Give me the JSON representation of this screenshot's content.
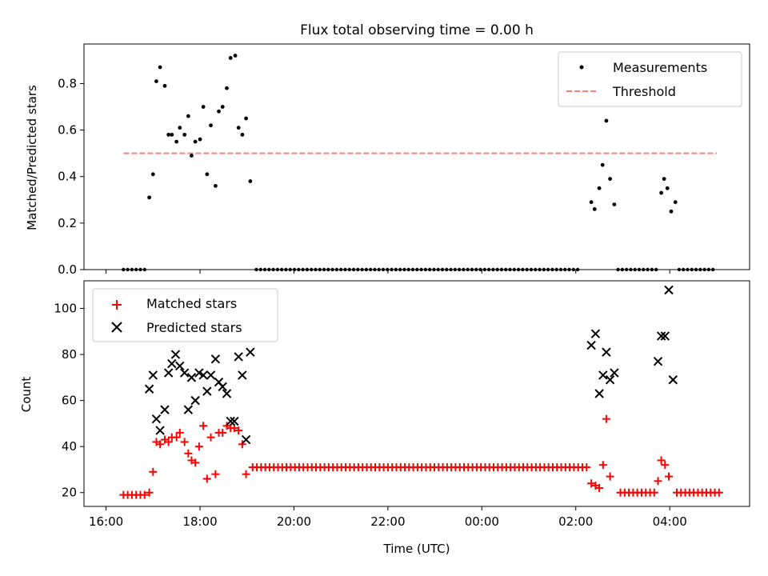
{
  "title": "Flux total observing time = 0.00 h",
  "xlabel": "Time (UTC)",
  "x_tick_labels": [
    "16:00",
    "18:00",
    "20:00",
    "22:00",
    "00:00",
    "02:00",
    "04:00"
  ],
  "x_tick_hours": [
    16,
    18,
    20,
    22,
    24,
    26,
    28
  ],
  "xlim_hours": [
    15.53,
    29.7
  ],
  "chart_data": [
    {
      "type": "scatter",
      "ylabel": "Matched/Predicted stars",
      "ylim": [
        0,
        0.97
      ],
      "y_ticks": [
        0.0,
        0.2,
        0.4,
        0.6,
        0.8
      ],
      "y_tick_labels": [
        "0.0",
        "0.2",
        "0.4",
        "0.6",
        "0.8"
      ],
      "legend_position": "upper right",
      "threshold": {
        "name": "Threshold",
        "y": 0.5,
        "x_range": [
          16.37,
          29.0
        ],
        "color": "#ff7f7f"
      },
      "series": [
        {
          "name": "Measurements",
          "color": "#000000",
          "x_ranges_zero": [
            [
              16.37,
              16.85
            ],
            [
              19.2,
              26.1
            ],
            [
              26.9,
              27.75
            ],
            [
              28.2,
              29.0
            ]
          ],
          "points": [
            [
              16.92,
              0.31
            ],
            [
              17.0,
              0.41
            ],
            [
              17.07,
              0.81
            ],
            [
              17.15,
              0.87
            ],
            [
              17.25,
              0.79
            ],
            [
              17.33,
              0.58
            ],
            [
              17.4,
              0.58
            ],
            [
              17.5,
              0.55
            ],
            [
              17.57,
              0.61
            ],
            [
              17.67,
              0.58
            ],
            [
              17.75,
              0.66
            ],
            [
              17.82,
              0.49
            ],
            [
              17.9,
              0.55
            ],
            [
              18.0,
              0.56
            ],
            [
              18.07,
              0.7
            ],
            [
              18.15,
              0.41
            ],
            [
              18.23,
              0.62
            ],
            [
              18.33,
              0.36
            ],
            [
              18.4,
              0.68
            ],
            [
              18.48,
              0.7
            ],
            [
              18.57,
              0.78
            ],
            [
              18.65,
              0.91
            ],
            [
              18.75,
              0.92
            ],
            [
              18.82,
              0.61
            ],
            [
              18.9,
              0.58
            ],
            [
              18.98,
              0.65
            ],
            [
              19.07,
              0.38
            ],
            [
              26.33,
              0.29
            ],
            [
              26.4,
              0.26
            ],
            [
              26.5,
              0.35
            ],
            [
              26.57,
              0.45
            ],
            [
              26.65,
              0.64
            ],
            [
              26.73,
              0.39
            ],
            [
              26.82,
              0.28
            ],
            [
              27.82,
              0.33
            ],
            [
              27.88,
              0.39
            ],
            [
              27.95,
              0.35
            ],
            [
              28.03,
              0.25
            ],
            [
              28.12,
              0.29
            ]
          ]
        }
      ]
    },
    {
      "type": "scatter",
      "ylabel": "Count",
      "ylim": [
        14,
        112
      ],
      "y_ticks": [
        20,
        40,
        60,
        80,
        100
      ],
      "y_tick_labels": [
        "20",
        "40",
        "60",
        "80",
        "100"
      ],
      "legend_position": "upper left",
      "series": [
        {
          "name": "Matched stars",
          "color": "#ff0000",
          "marker": "plus",
          "baselines": [
            {
              "x_range": [
                16.37,
                16.85
              ],
              "y": 19
            },
            {
              "x_range": [
                19.12,
                26.25
              ],
              "y": 31
            },
            {
              "x_range": [
                26.95,
                27.7
              ],
              "y": 20
            },
            {
              "x_range": [
                28.15,
                29.05
              ],
              "y": 20
            }
          ],
          "points": [
            [
              16.92,
              20
            ],
            [
              17.0,
              29
            ],
            [
              17.07,
              42
            ],
            [
              17.15,
              41
            ],
            [
              17.25,
              43
            ],
            [
              17.33,
              42
            ],
            [
              17.4,
              44
            ],
            [
              17.5,
              44
            ],
            [
              17.57,
              46
            ],
            [
              17.67,
              42
            ],
            [
              17.75,
              37
            ],
            [
              17.82,
              34
            ],
            [
              17.9,
              33
            ],
            [
              17.98,
              40
            ],
            [
              18.07,
              49
            ],
            [
              18.15,
              26
            ],
            [
              18.23,
              44
            ],
            [
              18.33,
              28
            ],
            [
              18.4,
              46
            ],
            [
              18.48,
              46
            ],
            [
              18.57,
              49
            ],
            [
              18.65,
              48
            ],
            [
              18.73,
              48
            ],
            [
              18.82,
              47
            ],
            [
              18.9,
              41
            ],
            [
              18.98,
              28
            ],
            [
              26.33,
              24
            ],
            [
              26.42,
              23
            ],
            [
              26.5,
              22
            ],
            [
              26.58,
              32
            ],
            [
              26.65,
              52
            ],
            [
              26.73,
              27
            ],
            [
              27.75,
              25
            ],
            [
              27.82,
              34
            ],
            [
              27.9,
              32
            ],
            [
              27.98,
              27
            ]
          ]
        },
        {
          "name": "Predicted stars",
          "color": "#000000",
          "marker": "x",
          "points": [
            [
              16.92,
              65
            ],
            [
              17.0,
              71
            ],
            [
              17.07,
              52
            ],
            [
              17.15,
              47
            ],
            [
              17.25,
              56
            ],
            [
              17.33,
              72
            ],
            [
              17.4,
              76
            ],
            [
              17.48,
              80
            ],
            [
              17.57,
              75
            ],
            [
              17.67,
              72
            ],
            [
              17.75,
              56
            ],
            [
              17.82,
              70
            ],
            [
              17.9,
              60
            ],
            [
              17.98,
              72
            ],
            [
              18.07,
              71
            ],
            [
              18.15,
              64
            ],
            [
              18.23,
              71
            ],
            [
              18.33,
              78
            ],
            [
              18.4,
              68
            ],
            [
              18.48,
              66
            ],
            [
              18.57,
              63
            ],
            [
              18.65,
              51
            ],
            [
              18.73,
              51
            ],
            [
              18.82,
              79
            ],
            [
              18.9,
              71
            ],
            [
              18.98,
              43
            ],
            [
              19.07,
              81
            ],
            [
              26.33,
              84
            ],
            [
              26.42,
              89
            ],
            [
              26.5,
              63
            ],
            [
              26.58,
              71
            ],
            [
              26.65,
              81
            ],
            [
              26.73,
              69
            ],
            [
              26.82,
              72
            ],
            [
              27.75,
              77
            ],
            [
              27.82,
              88
            ],
            [
              27.9,
              88
            ],
            [
              27.98,
              108
            ],
            [
              28.07,
              69
            ]
          ]
        }
      ]
    }
  ]
}
